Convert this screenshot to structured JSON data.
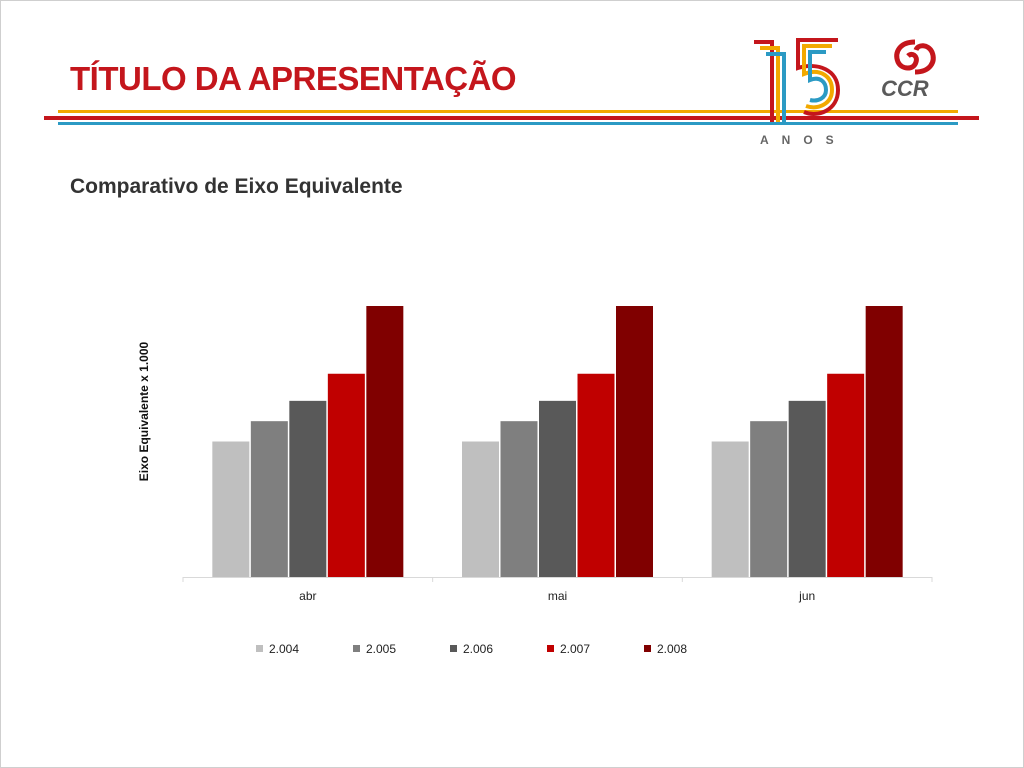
{
  "slide": {
    "title": "TÍTULO DA APRESENTAÇÃO",
    "subtitle": "Comparativo de Eixo Equivalente"
  },
  "logos": {
    "anniversary_number": "15",
    "anniversary_text": "ANOS",
    "company": "CCR"
  },
  "colors": {
    "accent_red": "#c4161c",
    "stripe_orange": "#f2a900",
    "stripe_blue": "#2b9ac4"
  },
  "chart_data": {
    "type": "bar",
    "title": "",
    "xlabel": "",
    "ylabel": "Eixo Equivalente x 1.000",
    "categories": [
      "abr",
      "mai",
      "jun"
    ],
    "ylim": [
      0,
      100
    ],
    "grid": false,
    "legend_position": "bottom",
    "series": [
      {
        "name": "2.004",
        "color": "#bfbfbf",
        "values": [
          50,
          50,
          50
        ]
      },
      {
        "name": "2.005",
        "color": "#7f7f7f",
        "values": [
          57.5,
          57.5,
          57.5
        ]
      },
      {
        "name": "2.006",
        "color": "#595959",
        "values": [
          65,
          65,
          65
        ]
      },
      {
        "name": "2.007",
        "color": "#c00000",
        "values": [
          75,
          75,
          75
        ]
      },
      {
        "name": "2.008",
        "color": "#800000",
        "values": [
          100,
          100,
          100
        ]
      }
    ]
  }
}
